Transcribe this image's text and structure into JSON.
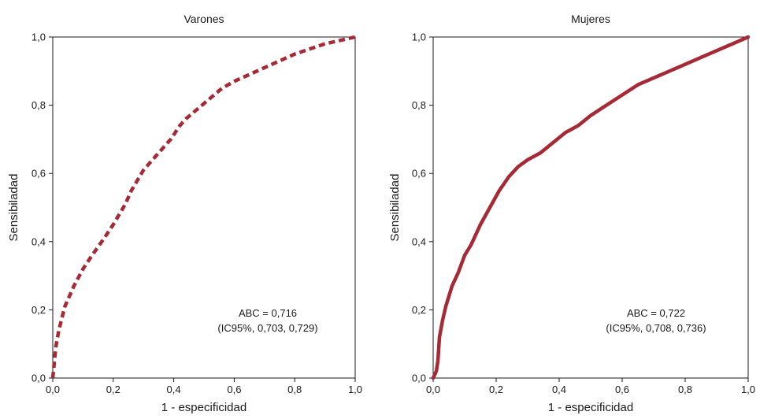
{
  "chart_data": [
    {
      "type": "line",
      "title": "Varones",
      "xlabel": "1 - especificidad",
      "ylabel": "Sensibiladad",
      "xlim": [
        0,
        1
      ],
      "ylim": [
        0,
        1
      ],
      "xticks": [
        "0,0",
        "0,2",
        "0,4",
        "0,6",
        "0,8",
        "1,0"
      ],
      "yticks": [
        "0,0",
        "0,2",
        "0,4",
        "0,6",
        "0,8",
        "1,0"
      ],
      "line_style": "dashed",
      "color": "#A52A35",
      "annotation": [
        "ABC = 0,716",
        "(IC95%, 0,703, 0,729)"
      ],
      "series": [
        {
          "x": [
            0.0,
            0.01,
            0.02,
            0.04,
            0.07,
            0.1,
            0.13,
            0.17,
            0.2,
            0.22,
            0.24,
            0.26,
            0.28,
            0.3,
            0.33,
            0.36,
            0.39,
            0.42,
            0.44,
            0.48,
            0.52,
            0.56,
            0.6,
            0.65,
            0.7,
            0.75,
            0.8,
            0.85,
            0.9,
            0.95,
            1.0
          ],
          "y": [
            0.0,
            0.09,
            0.14,
            0.21,
            0.27,
            0.32,
            0.36,
            0.41,
            0.45,
            0.48,
            0.51,
            0.55,
            0.58,
            0.61,
            0.64,
            0.67,
            0.7,
            0.74,
            0.76,
            0.79,
            0.82,
            0.85,
            0.87,
            0.89,
            0.91,
            0.93,
            0.95,
            0.965,
            0.98,
            0.99,
            1.0
          ]
        }
      ]
    },
    {
      "type": "line",
      "title": "Mujeres",
      "xlabel": "1 - especificidad",
      "ylabel": "Sensibiladad",
      "xlim": [
        0,
        1
      ],
      "ylim": [
        0,
        1
      ],
      "xticks": [
        "0,0",
        "0,2",
        "0,4",
        "0,6",
        "0,8",
        "1,0"
      ],
      "yticks": [
        "0,0",
        "0,2",
        "0,4",
        "0,6",
        "0,8",
        "1,0"
      ],
      "line_style": "solid",
      "color": "#A52A35",
      "annotation": [
        "ABC = 0,722",
        "(IC95%, 0,708, 0,736)"
      ],
      "series": [
        {
          "x": [
            0.0,
            0.01,
            0.015,
            0.02,
            0.03,
            0.04,
            0.05,
            0.06,
            0.08,
            0.1,
            0.12,
            0.15,
            0.18,
            0.21,
            0.24,
            0.27,
            0.3,
            0.34,
            0.38,
            0.42,
            0.46,
            0.5,
            0.55,
            0.6,
            0.65,
            0.7,
            0.75,
            0.8,
            0.85,
            0.9,
            0.95,
            1.0
          ],
          "y": [
            0.0,
            0.02,
            0.05,
            0.12,
            0.17,
            0.21,
            0.24,
            0.27,
            0.31,
            0.36,
            0.39,
            0.45,
            0.5,
            0.55,
            0.59,
            0.62,
            0.64,
            0.66,
            0.69,
            0.72,
            0.74,
            0.77,
            0.8,
            0.83,
            0.86,
            0.88,
            0.9,
            0.92,
            0.94,
            0.96,
            0.98,
            1.0
          ]
        }
      ]
    }
  ]
}
